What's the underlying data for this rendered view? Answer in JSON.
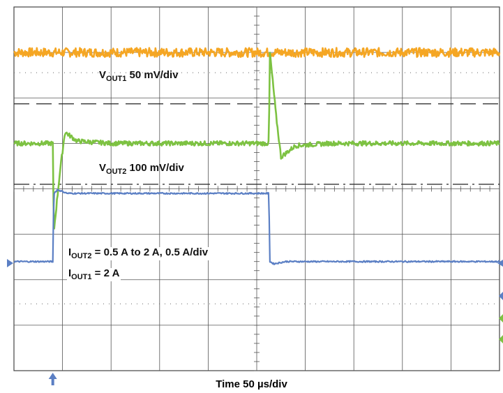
{
  "chart_data": {
    "type": "line",
    "title": "",
    "xlabel": "Time 50 µs/div",
    "x_scale": "Time 50 µs/div",
    "x_divisions": 10,
    "y_divisions": 8,
    "grid": true,
    "trigger_x_div": 0.8,
    "channels": [
      {
        "name": "VOUT1",
        "label_main": "V",
        "label_sub": "OUT1",
        "label_rest": " 50 mV/div",
        "color": "#f5a623",
        "noise_level": 0.1,
        "points": [
          [
            0,
            0.0
          ],
          [
            10,
            0.0
          ]
        ]
      },
      {
        "name": "VOUT2",
        "label_main": "V",
        "label_sub": "OUT2",
        "label_rest": " 100 mV/div",
        "color": "#7dc242",
        "noise_level": 0.05,
        "points": [
          [
            0,
            0.0
          ],
          [
            0.8,
            0.0
          ],
          [
            0.82,
            -1.95
          ],
          [
            0.95,
            -0.6
          ],
          [
            1.05,
            0.25
          ],
          [
            1.3,
            0.05
          ],
          [
            2,
            0.0
          ],
          [
            5.25,
            0.0
          ],
          [
            5.27,
            2.0
          ],
          [
            5.4,
            0.6
          ],
          [
            5.5,
            -0.3
          ],
          [
            5.8,
            -0.05
          ],
          [
            6.5,
            0.0
          ],
          [
            10,
            0.0
          ]
        ]
      },
      {
        "name": "IOUT2",
        "label_main": "I",
        "label_sub": "OUT2",
        "label_rest": " = 0.5 A to 2 A, 0.5 A/div",
        "label2_main": "I",
        "label2_sub": "OUT1",
        "label2_rest": " = 2 A",
        "color": "#5b7fc4",
        "noise_level": 0.015,
        "points": [
          [
            0,
            0.5
          ],
          [
            0.8,
            0.5
          ],
          [
            0.82,
            2.0
          ],
          [
            0.9,
            2.08
          ],
          [
            1.1,
            2.0
          ],
          [
            5.25,
            2.0
          ],
          [
            5.27,
            0.5
          ],
          [
            5.35,
            0.45
          ],
          [
            5.6,
            0.5
          ],
          [
            10,
            0.5
          ]
        ]
      }
    ]
  }
}
